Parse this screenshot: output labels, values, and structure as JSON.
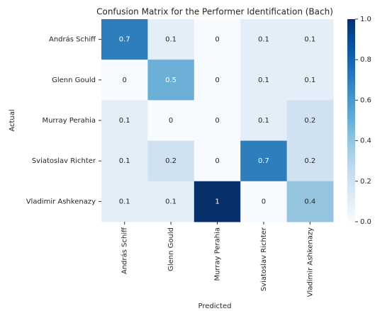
{
  "chart_data": {
    "type": "heatmap",
    "title": "Confusion Matrix for the Performer Identification (Bach)",
    "x_label": "Predicted",
    "y_label": "Actual",
    "x_categories": [
      "András Schiff",
      "Glenn Gould",
      "Murray Perahia",
      "Sviatoslav Richter",
      "Vladimir Ashkenazy"
    ],
    "y_categories": [
      "András Schiff",
      "Glenn Gould",
      "Murray Perahia",
      "Sviatoslav Richter",
      "Vladimir Ashkenazy"
    ],
    "values": [
      [
        0.7,
        0.1,
        0,
        0.1,
        0.1
      ],
      [
        0,
        0.5,
        0,
        0.1,
        0.1
      ],
      [
        0.1,
        0,
        0,
        0.1,
        0.2
      ],
      [
        0.1,
        0.2,
        0,
        0.7,
        0.2
      ],
      [
        0.1,
        0.1,
        1,
        0,
        0.4
      ]
    ],
    "colormap": [
      "#f7fbff",
      "#deebf7",
      "#c6dbef",
      "#9ecae1",
      "#6baed6",
      "#4292c6",
      "#2171b5",
      "#08519c",
      "#08306b"
    ],
    "clim": [
      0,
      1
    ],
    "cticks": [
      {
        "value": 0,
        "label": "0.0"
      },
      {
        "value": 0.2,
        "label": "0.2"
      },
      {
        "value": 0.4,
        "label": "0.4"
      },
      {
        "value": 0.6,
        "label": "0.6"
      },
      {
        "value": 0.8,
        "label": "0.8"
      },
      {
        "value": 1,
        "label": "1.0"
      }
    ]
  }
}
